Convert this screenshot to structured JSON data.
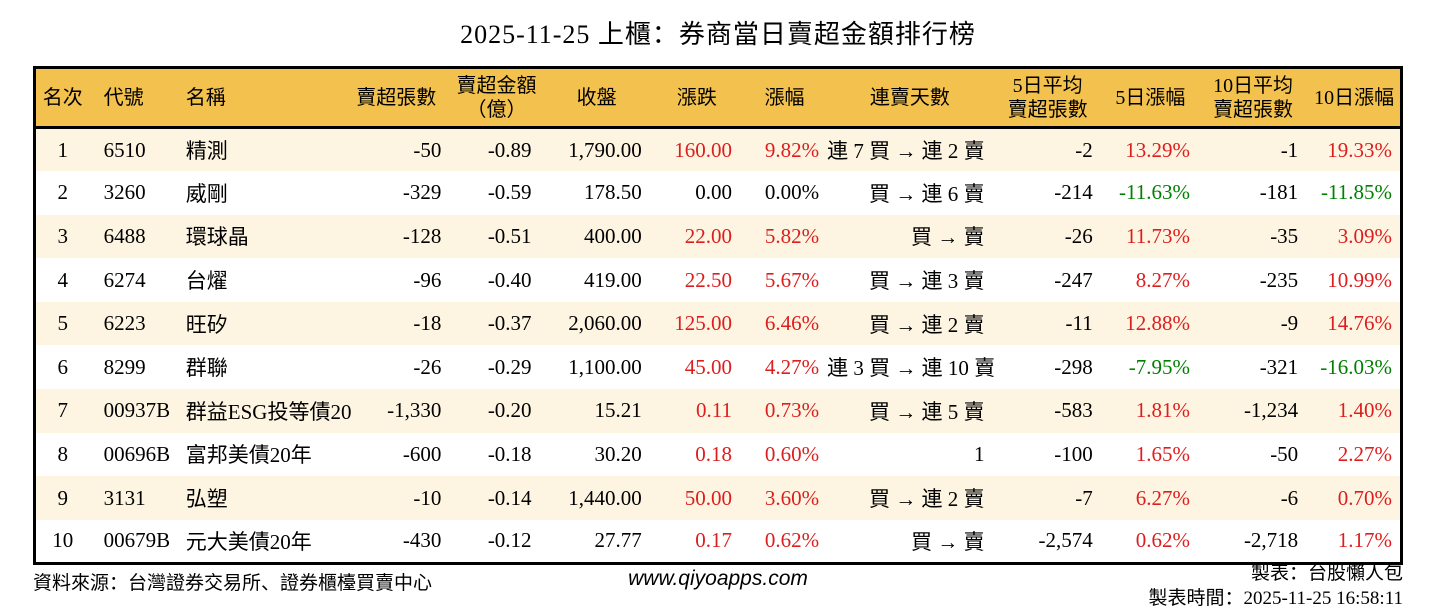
{
  "title": "2025-11-25 上櫃：券商當日賣超金額排行榜",
  "colors": {
    "up": "#dc1e1e",
    "down": "#008000",
    "header_bg": "#f2c14e",
    "row_alt_bg": "#fdf5e2",
    "border": "#000000"
  },
  "chart_data": {
    "type": "table",
    "title": "2025-11-25 上櫃：券商當日賣超金額排行榜",
    "columns": [
      "名次",
      "代號",
      "名稱",
      "賣超張數",
      "賣超金額\n（億）",
      "收盤",
      "漲跌",
      "漲幅",
      "連賣天數",
      "5日平均\n賣超張數",
      "5日漲幅",
      "10日平均\n賣超張數",
      "10日漲幅"
    ],
    "rows": [
      [
        {
          "t": "1"
        },
        {
          "t": "6510"
        },
        {
          "t": "精測"
        },
        {
          "t": "-50"
        },
        {
          "t": "-0.89"
        },
        {
          "t": "1,790.00"
        },
        {
          "t": "160.00",
          "c": "red"
        },
        {
          "t": "9.82%",
          "c": "red"
        },
        {
          "t": "連 7 買 → 連 2 賣"
        },
        {
          "t": "-2"
        },
        {
          "t": "13.29%",
          "c": "red"
        },
        {
          "t": "-1"
        },
        {
          "t": "19.33%",
          "c": "red"
        }
      ],
      [
        {
          "t": "2"
        },
        {
          "t": "3260"
        },
        {
          "t": "威剛"
        },
        {
          "t": "-329"
        },
        {
          "t": "-0.59"
        },
        {
          "t": "178.50"
        },
        {
          "t": "0.00"
        },
        {
          "t": "0.00%"
        },
        {
          "t": "買 → 連 6 賣"
        },
        {
          "t": "-214"
        },
        {
          "t": "-11.63%",
          "c": "green"
        },
        {
          "t": "-181"
        },
        {
          "t": "-11.85%",
          "c": "green"
        }
      ],
      [
        {
          "t": "3"
        },
        {
          "t": "6488"
        },
        {
          "t": "環球晶"
        },
        {
          "t": "-128"
        },
        {
          "t": "-0.51"
        },
        {
          "t": "400.00"
        },
        {
          "t": "22.00",
          "c": "red"
        },
        {
          "t": "5.82%",
          "c": "red"
        },
        {
          "t": "買 → 賣"
        },
        {
          "t": "-26"
        },
        {
          "t": "11.73%",
          "c": "red"
        },
        {
          "t": "-35"
        },
        {
          "t": "3.09%",
          "c": "red"
        }
      ],
      [
        {
          "t": "4"
        },
        {
          "t": "6274"
        },
        {
          "t": "台燿"
        },
        {
          "t": "-96"
        },
        {
          "t": "-0.40"
        },
        {
          "t": "419.00"
        },
        {
          "t": "22.50",
          "c": "red"
        },
        {
          "t": "5.67%",
          "c": "red"
        },
        {
          "t": "買 → 連 3 賣"
        },
        {
          "t": "-247"
        },
        {
          "t": "8.27%",
          "c": "red"
        },
        {
          "t": "-235"
        },
        {
          "t": "10.99%",
          "c": "red"
        }
      ],
      [
        {
          "t": "5"
        },
        {
          "t": "6223"
        },
        {
          "t": "旺矽"
        },
        {
          "t": "-18"
        },
        {
          "t": "-0.37"
        },
        {
          "t": "2,060.00"
        },
        {
          "t": "125.00",
          "c": "red"
        },
        {
          "t": "6.46%",
          "c": "red"
        },
        {
          "t": "買 → 連 2 賣"
        },
        {
          "t": "-11"
        },
        {
          "t": "12.88%",
          "c": "red"
        },
        {
          "t": "-9"
        },
        {
          "t": "14.76%",
          "c": "red"
        }
      ],
      [
        {
          "t": "6"
        },
        {
          "t": "8299"
        },
        {
          "t": "群聯"
        },
        {
          "t": "-26"
        },
        {
          "t": "-0.29"
        },
        {
          "t": "1,100.00"
        },
        {
          "t": "45.00",
          "c": "red"
        },
        {
          "t": "4.27%",
          "c": "red"
        },
        {
          "t": "連 3 買 → 連 10 賣"
        },
        {
          "t": "-298"
        },
        {
          "t": "-7.95%",
          "c": "green"
        },
        {
          "t": "-321"
        },
        {
          "t": "-16.03%",
          "c": "green"
        }
      ],
      [
        {
          "t": "7"
        },
        {
          "t": "00937B"
        },
        {
          "t": "群益ESG投等債20"
        },
        {
          "t": "-1,330"
        },
        {
          "t": "-0.20"
        },
        {
          "t": "15.21"
        },
        {
          "t": "0.11",
          "c": "red"
        },
        {
          "t": "0.73%",
          "c": "red"
        },
        {
          "t": "買 → 連 5 賣"
        },
        {
          "t": "-583"
        },
        {
          "t": "1.81%",
          "c": "red"
        },
        {
          "t": "-1,234"
        },
        {
          "t": "1.40%",
          "c": "red"
        }
      ],
      [
        {
          "t": "8"
        },
        {
          "t": "00696B"
        },
        {
          "t": "富邦美債20年"
        },
        {
          "t": "-600"
        },
        {
          "t": "-0.18"
        },
        {
          "t": "30.20"
        },
        {
          "t": "0.18",
          "c": "red"
        },
        {
          "t": "0.60%",
          "c": "red"
        },
        {
          "t": "1"
        },
        {
          "t": "-100"
        },
        {
          "t": "1.65%",
          "c": "red"
        },
        {
          "t": "-50"
        },
        {
          "t": "2.27%",
          "c": "red"
        }
      ],
      [
        {
          "t": "9"
        },
        {
          "t": "3131"
        },
        {
          "t": "弘塑"
        },
        {
          "t": "-10"
        },
        {
          "t": "-0.14"
        },
        {
          "t": "1,440.00"
        },
        {
          "t": "50.00",
          "c": "red"
        },
        {
          "t": "3.60%",
          "c": "red"
        },
        {
          "t": "買 → 連 2 賣"
        },
        {
          "t": "-7"
        },
        {
          "t": "6.27%",
          "c": "red"
        },
        {
          "t": "-6"
        },
        {
          "t": "0.70%",
          "c": "red"
        }
      ],
      [
        {
          "t": "10"
        },
        {
          "t": "00679B"
        },
        {
          "t": "元大美債20年"
        },
        {
          "t": "-430"
        },
        {
          "t": "-0.12"
        },
        {
          "t": "27.77"
        },
        {
          "t": "0.17",
          "c": "red"
        },
        {
          "t": "0.62%",
          "c": "red"
        },
        {
          "t": "買 → 賣"
        },
        {
          "t": "-2,574"
        },
        {
          "t": "0.62%",
          "c": "red"
        },
        {
          "t": "-2,718"
        },
        {
          "t": "1.17%",
          "c": "red"
        }
      ]
    ]
  },
  "footer": {
    "source": "資料來源：台灣證券交易所、證券櫃檯買賣中心",
    "site": "www.qiyoapps.com",
    "maker": "製表：台股懶人包",
    "made_time": "製表時間：2025-11-25 16:58:11"
  }
}
